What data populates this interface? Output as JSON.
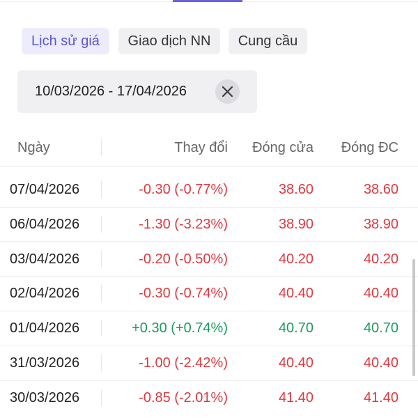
{
  "tabs": [
    {
      "label": "Lịch sử giá",
      "active": true
    },
    {
      "label": "Giao dịch NN",
      "active": false
    },
    {
      "label": "Cung cầu",
      "active": false
    }
  ],
  "date_range": {
    "text": "10/03/2026 - 17/04/2026"
  },
  "table": {
    "headers": [
      "Ngày",
      "Thay đổi",
      "Đóng cửa",
      "Đóng ĐC"
    ],
    "rows": [
      {
        "cells": [
          "07/04/2026",
          "-0.30 (-0.77%)",
          "38.60",
          "38.60"
        ],
        "color": "#e0383e"
      },
      {
        "cells": [
          "06/04/2026",
          "-1.30 (-3.23%)",
          "38.90",
          "38.90"
        ],
        "color": "#e0383e"
      },
      {
        "cells": [
          "03/04/2026",
          "-0.20 (-0.50%)",
          "40.20",
          "40.20"
        ],
        "color": "#e0383e"
      },
      {
        "cells": [
          "02/04/2026",
          "-0.30 (-0.74%)",
          "40.40",
          "40.40"
        ],
        "color": "#e0383e"
      },
      {
        "cells": [
          "01/04/2026",
          "+0.30 (+0.74%)",
          "40.70",
          "40.70"
        ],
        "color": "#1a9b5c"
      },
      {
        "cells": [
          "31/03/2026",
          "-1.00 (-2.42%)",
          "40.40",
          "40.40"
        ],
        "color": "#e0383e"
      },
      {
        "cells": [
          "30/03/2026",
          "-0.85 (-2.01%)",
          "41.40",
          "41.40"
        ],
        "color": "#e0383e"
      }
    ]
  }
}
